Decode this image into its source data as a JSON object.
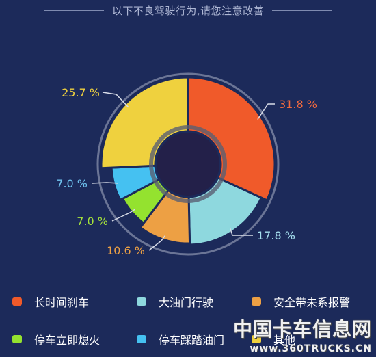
{
  "chart_data": {
    "type": "pie",
    "title": "以下不良驾驶行为,请您注意改善",
    "categories": [
      "长时间刹车",
      "大油门行驶",
      "安全带未系报警",
      "停车立即熄火",
      "停车踩踏油门",
      "其他"
    ],
    "values": [
      31.8,
      17.8,
      10.6,
      7.0,
      7.0,
      25.7
    ],
    "value_labels": [
      "31.8 %",
      "17.8 %",
      "10.6 %",
      "7.0 %",
      "7.0 %",
      "25.7 %"
    ],
    "colors": [
      "#f05a2a",
      "#8ed8de",
      "#eda044",
      "#94e22f",
      "#45c1f1",
      "#efd13e"
    ],
    "label_colors": [
      "#f26a3e",
      "#a6e0ef",
      "#eda044",
      "#a6e33a",
      "#6fc3ef",
      "#efd13e"
    ],
    "legend_placement": "bottom"
  },
  "watermark": {
    "text": "中国卡车信息网",
    "url": "www.360TRUCKS.CN"
  }
}
